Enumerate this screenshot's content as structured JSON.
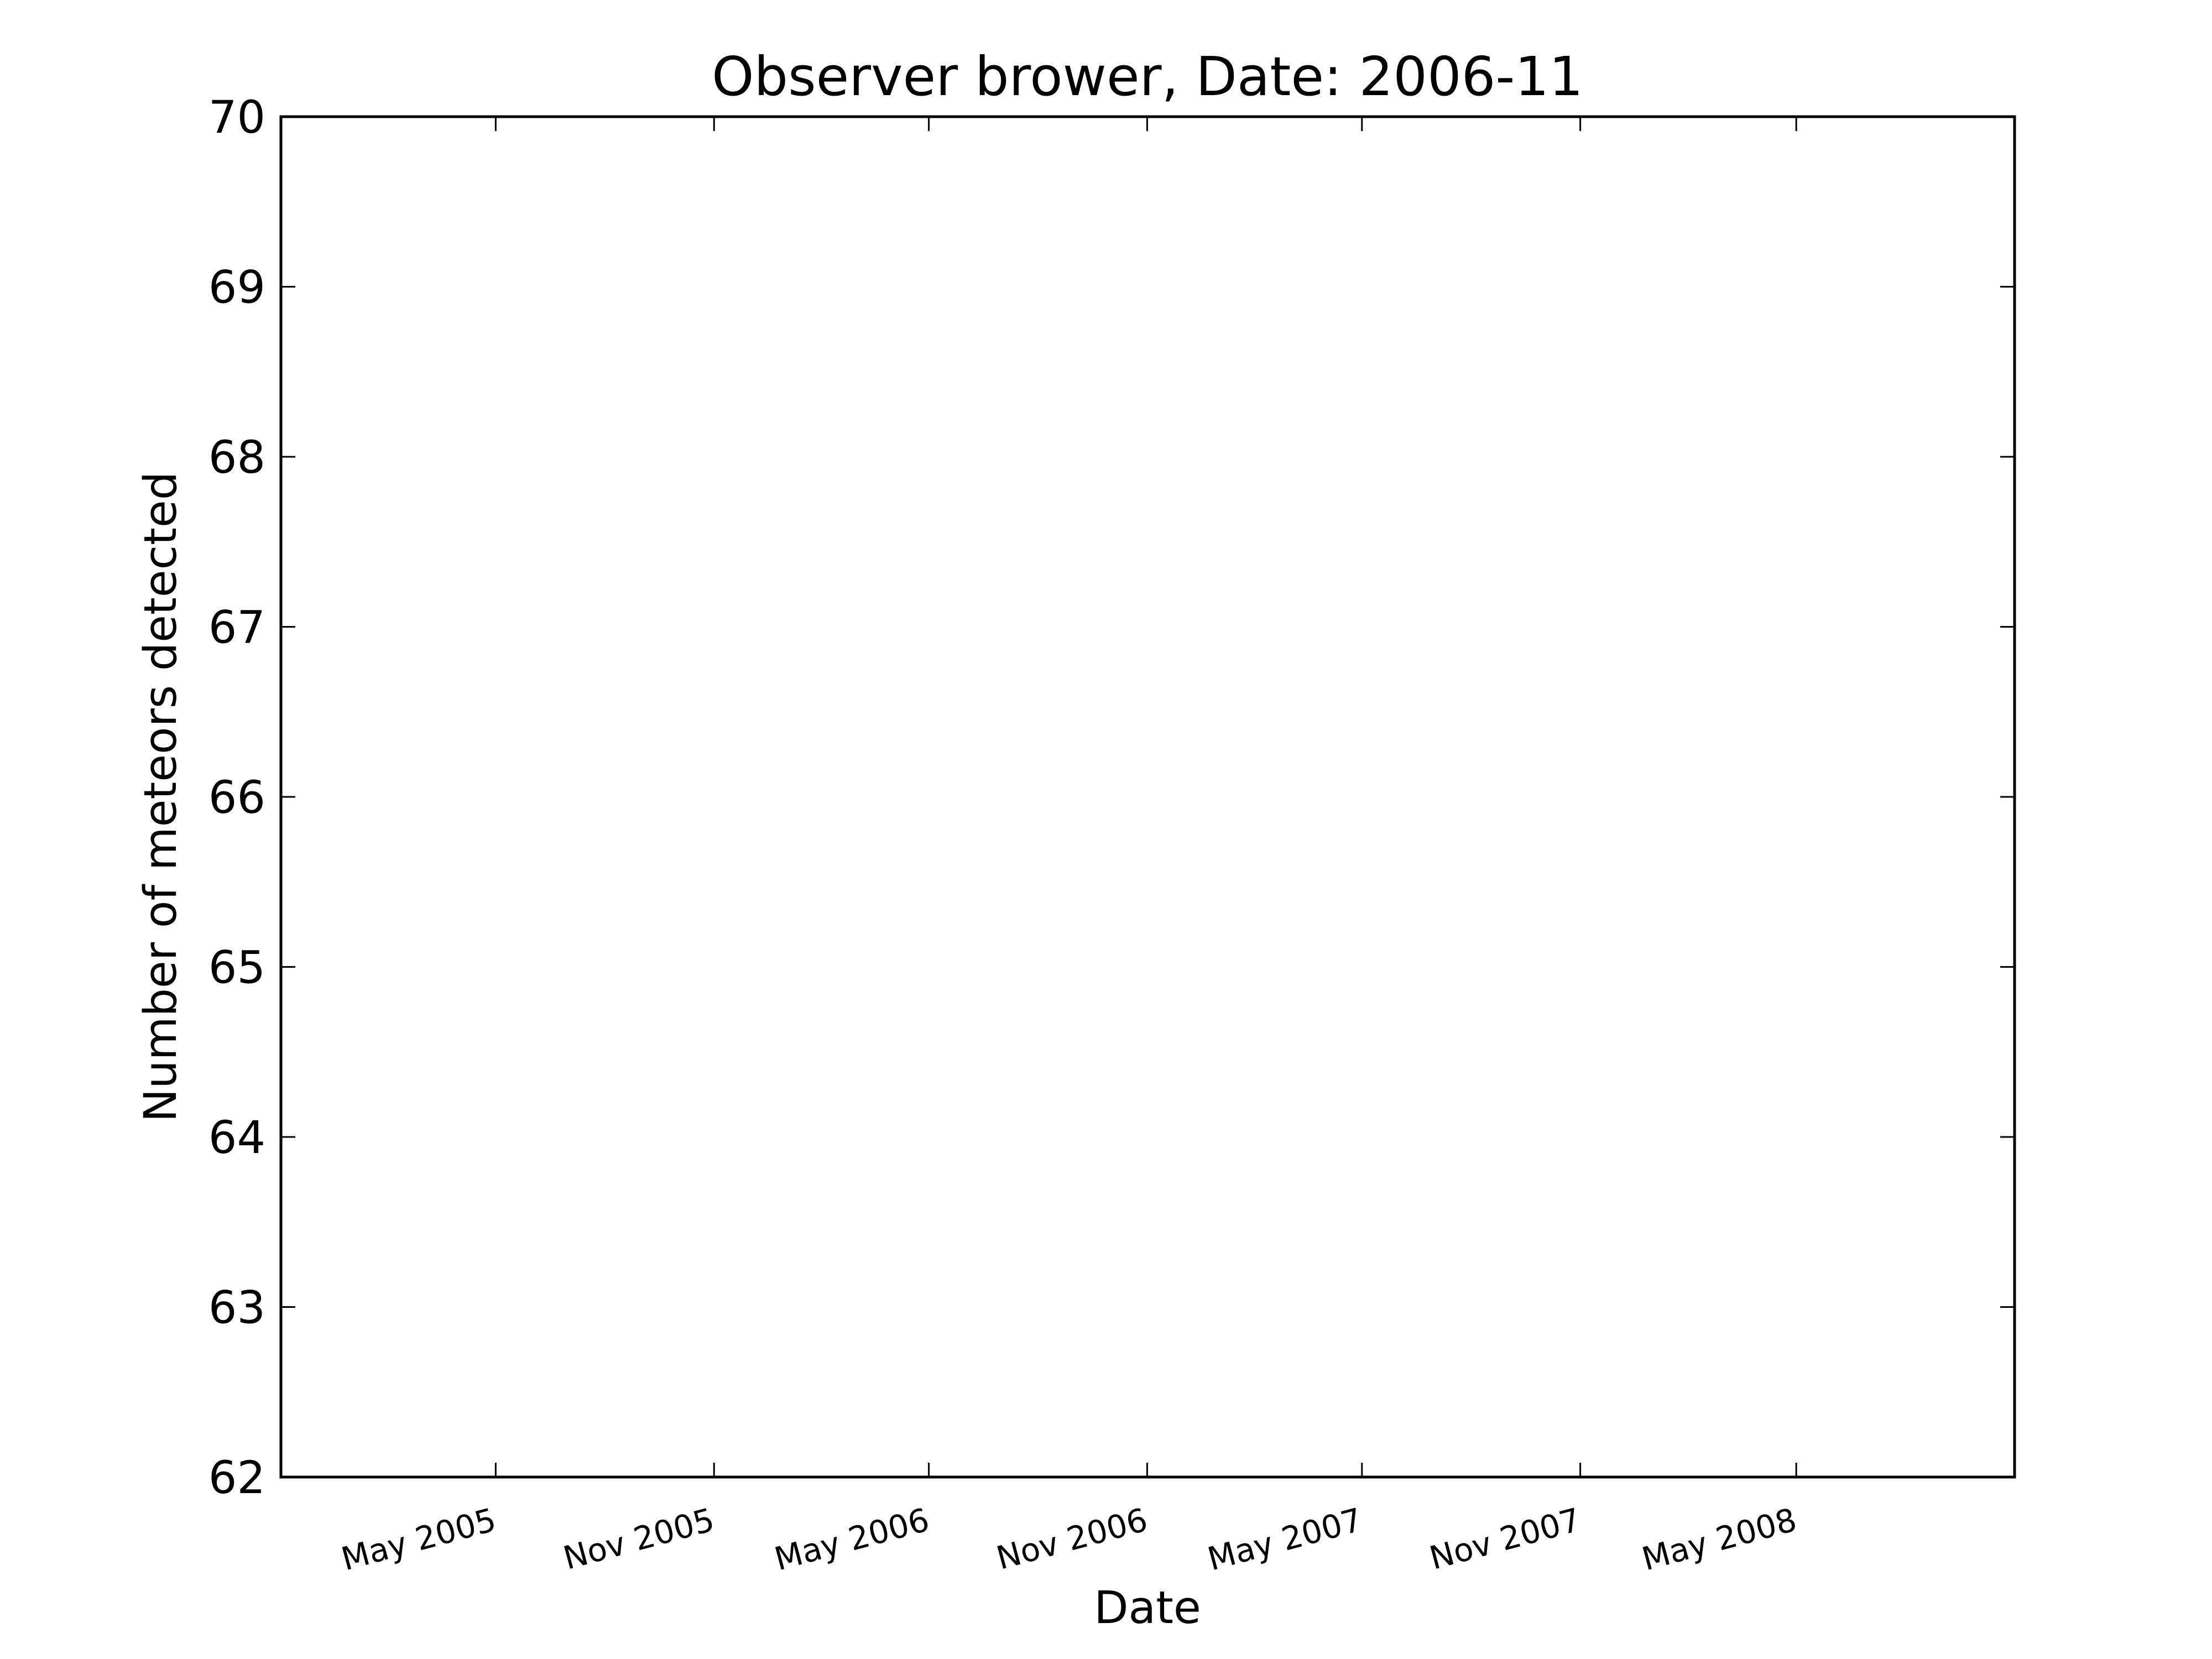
{
  "chart_data": {
    "type": "line",
    "title": "Observer brower, Date: 2006-11",
    "xlabel": "Date",
    "ylabel": "Number of meteors detected",
    "x_type": "date",
    "xlim": [
      "2004-11-01",
      "2008-11-01"
    ],
    "ylim": [
      62,
      70
    ],
    "xticks": [
      {
        "value": "2005-05-01",
        "label": "May 2005"
      },
      {
        "value": "2005-11-01",
        "label": "Nov 2005"
      },
      {
        "value": "2006-05-01",
        "label": "May 2006"
      },
      {
        "value": "2006-11-01",
        "label": "Nov 2006"
      },
      {
        "value": "2007-05-01",
        "label": "May 2007"
      },
      {
        "value": "2007-11-01",
        "label": "Nov 2007"
      },
      {
        "value": "2008-05-01",
        "label": "May 2008"
      }
    ],
    "yticks": [
      {
        "value": 62,
        "label": "62"
      },
      {
        "value": 63,
        "label": "63"
      },
      {
        "value": 64,
        "label": "64"
      },
      {
        "value": 65,
        "label": "65"
      },
      {
        "value": 66,
        "label": "66"
      },
      {
        "value": 67,
        "label": "67"
      },
      {
        "value": 68,
        "label": "68"
      },
      {
        "value": 69,
        "label": "69"
      },
      {
        "value": 70,
        "label": "70"
      }
    ],
    "series": [],
    "grid": false,
    "legend": "none",
    "colors": {
      "axes": "#000000",
      "background": "#ffffff"
    }
  }
}
